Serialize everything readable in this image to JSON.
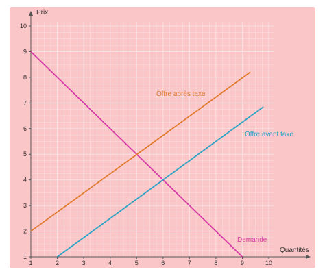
{
  "chart_data": {
    "type": "line",
    "title": "",
    "xlabel": "Quantités",
    "ylabel": "Prix",
    "xlim": [
      1,
      10
    ],
    "ylim": [
      1,
      10
    ],
    "x_ticks": [
      "1",
      "2",
      "3",
      "4",
      "5",
      "6",
      "7",
      "8",
      "9",
      "10"
    ],
    "y_ticks": [
      "1",
      "2",
      "3",
      "4",
      "5",
      "6",
      "7",
      "8",
      "9",
      "10"
    ],
    "grid": true,
    "legend": "none",
    "series": [
      {
        "name": "Demande",
        "color": "#d63aa6",
        "points": [
          [
            1,
            9
          ],
          [
            9,
            1
          ]
        ]
      },
      {
        "name": "Offre après taxe",
        "color": "#e07a2c",
        "points": [
          [
            1,
            2
          ],
          [
            9.3,
            8.2
          ]
        ]
      },
      {
        "name": "Offre avant taxe",
        "color": "#2aa3c4",
        "points": [
          [
            2,
            1
          ],
          [
            9.8,
            6.85
          ]
        ]
      }
    ]
  },
  "colors": {
    "background": "#fbc6c8",
    "grid": "#f6e2e3",
    "axis": "#555555"
  }
}
